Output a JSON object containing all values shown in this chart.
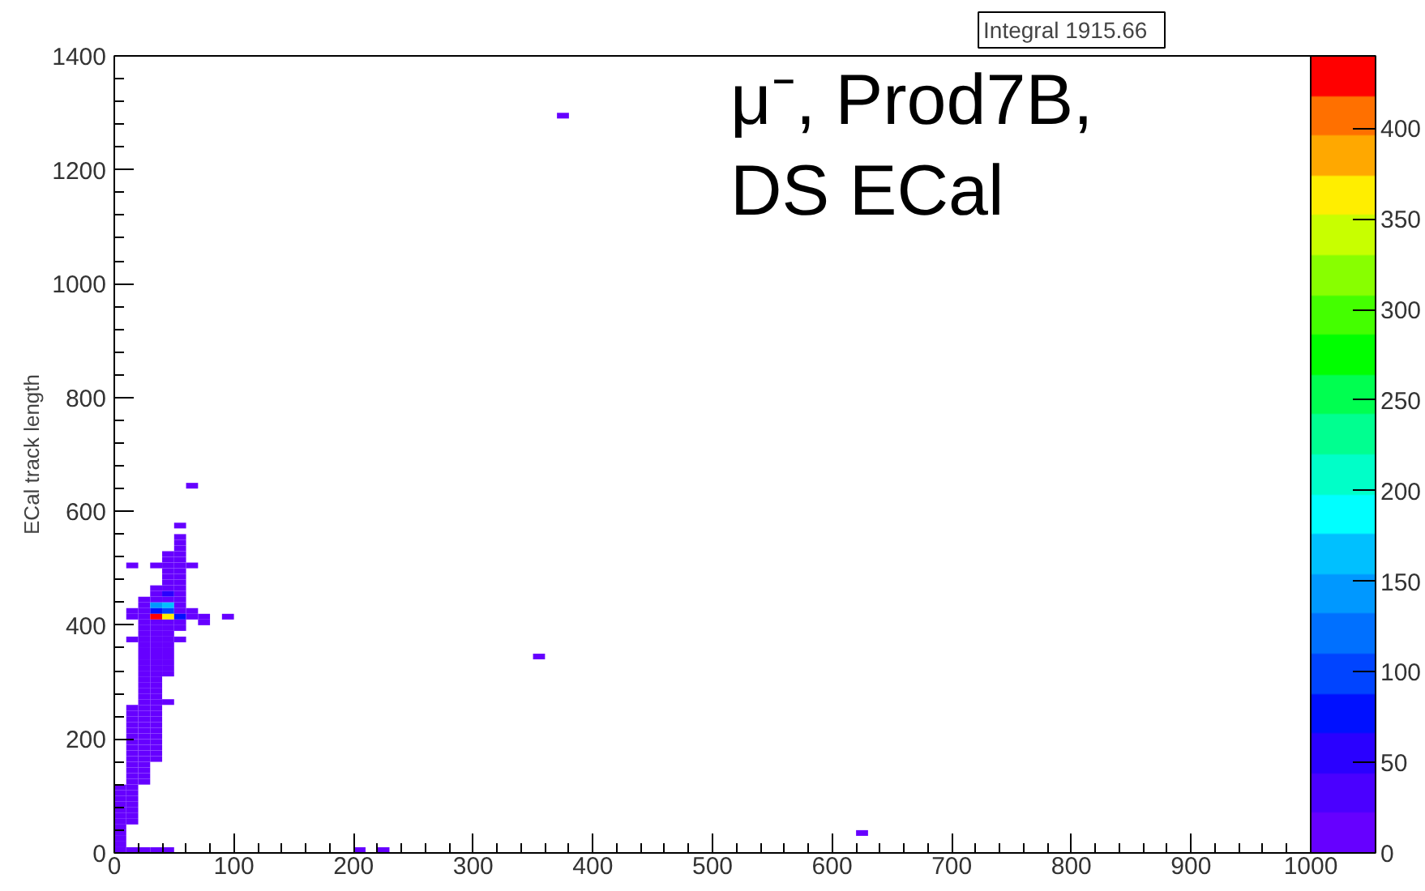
{
  "chart_data": {
    "type": "scatter",
    "title": "μ⁻, Prod7B,\nDS ECal",
    "ylabel": "ECal track length",
    "annotations": [
      "Integral   1915.66"
    ],
    "marker": "square",
    "xlim": [
      0,
      1000
    ],
    "ylim": [
      0,
      1400
    ],
    "xticks": [
      0,
      100,
      200,
      300,
      400,
      500,
      600,
      700,
      800,
      900,
      1000
    ],
    "yticks": [
      0,
      200,
      400,
      600,
      800,
      1000,
      1200,
      1400
    ],
    "clim": [
      0,
      440
    ],
    "cticks": [
      0,
      50,
      100,
      150,
      200,
      250,
      300,
      350,
      400
    ],
    "x": [
      65,
      55,
      55,
      55,
      55,
      45,
      55,
      45,
      55,
      15,
      35,
      45,
      55,
      65,
      45,
      55,
      45,
      55,
      45,
      55,
      35,
      45,
      55,
      35,
      45,
      55,
      25,
      35,
      45,
      55,
      25,
      35,
      45,
      55,
      15,
      25,
      35,
      45,
      55,
      65,
      15,
      25,
      35,
      45,
      55,
      65,
      75,
      95,
      25,
      35,
      45,
      55,
      75,
      25,
      35,
      45,
      55,
      25,
      35,
      45,
      15,
      25,
      35,
      45,
      55,
      25,
      35,
      45,
      25,
      35,
      45,
      25,
      35,
      45,
      25,
      35,
      45,
      25,
      35,
      45,
      25,
      35,
      45,
      25,
      35,
      25,
      35,
      25,
      35,
      25,
      35,
      25,
      35,
      45,
      15,
      25,
      35,
      15,
      25,
      35,
      15,
      25,
      35,
      15,
      25,
      35,
      15,
      25,
      35,
      15,
      25,
      35,
      15,
      25,
      35,
      15,
      25,
      35,
      15,
      25,
      35,
      15,
      25,
      35,
      15,
      25,
      15,
      25,
      15,
      25,
      15,
      25,
      5,
      15,
      5,
      15,
      5,
      15,
      5,
      15,
      5,
      15,
      5,
      15,
      5,
      15,
      5,
      5,
      5,
      5,
      5,
      15,
      25,
      35,
      45,
      205,
      225,
      625,
      355,
      375
    ],
    "values": [
      645,
      575,
      555,
      545,
      535,
      525,
      525,
      515,
      515,
      505,
      505,
      505,
      505,
      505,
      495,
      495,
      485,
      485,
      475,
      475,
      465,
      465,
      465,
      455,
      455,
      455,
      445,
      445,
      445,
      445,
      435,
      435,
      435,
      435,
      425,
      425,
      425,
      425,
      425,
      425,
      415,
      415,
      415,
      415,
      415,
      415,
      415,
      415,
      405,
      405,
      405,
      405,
      405,
      395,
      395,
      395,
      395,
      385,
      385,
      385,
      375,
      375,
      375,
      375,
      375,
      365,
      365,
      365,
      355,
      355,
      355,
      345,
      345,
      345,
      335,
      335,
      335,
      325,
      325,
      325,
      315,
      315,
      315,
      305,
      305,
      295,
      295,
      285,
      285,
      275,
      275,
      265,
      265,
      265,
      255,
      255,
      255,
      245,
      245,
      245,
      235,
      235,
      235,
      225,
      225,
      225,
      215,
      215,
      215,
      205,
      205,
      205,
      195,
      195,
      195,
      185,
      185,
      185,
      175,
      175,
      175,
      165,
      165,
      165,
      155,
      155,
      145,
      145,
      135,
      135,
      125,
      125,
      115,
      115,
      105,
      105,
      95,
      95,
      85,
      85,
      75,
      75,
      65,
      65,
      55,
      55,
      45,
      35,
      25,
      15,
      5,
      5,
      5,
      5,
      5,
      5,
      5,
      35,
      345,
      1295
    ],
    "cvalues": [
      5,
      5,
      5,
      8,
      10,
      8,
      12,
      10,
      12,
      5,
      6,
      12,
      15,
      5,
      10,
      14,
      12,
      15,
      14,
      18,
      8,
      20,
      15,
      10,
      60,
      15,
      8,
      15,
      20,
      12,
      12,
      140,
      160,
      15,
      8,
      20,
      80,
      90,
      20,
      8,
      10,
      20,
      430,
      360,
      70,
      10,
      5,
      5,
      15,
      20,
      20,
      12,
      5,
      12,
      18,
      15,
      8,
      10,
      15,
      12,
      5,
      12,
      15,
      10,
      5,
      10,
      14,
      8,
      10,
      14,
      8,
      10,
      14,
      8,
      10,
      14,
      8,
      10,
      12,
      6,
      10,
      12,
      6,
      10,
      12,
      10,
      12,
      10,
      12,
      10,
      12,
      8,
      10,
      5,
      6,
      10,
      8,
      6,
      10,
      8,
      6,
      10,
      8,
      6,
      10,
      8,
      6,
      10,
      8,
      6,
      10,
      6,
      6,
      10,
      6,
      6,
      10,
      6,
      6,
      10,
      6,
      6,
      10,
      6,
      8,
      6,
      8,
      6,
      8,
      6,
      8,
      6,
      6,
      5,
      6,
      5,
      6,
      5,
      6,
      5,
      6,
      5,
      6,
      5,
      6,
      5,
      5,
      5,
      5,
      5,
      6,
      5,
      5,
      5,
      5,
      2,
      2,
      2,
      2,
      2
    ]
  }
}
